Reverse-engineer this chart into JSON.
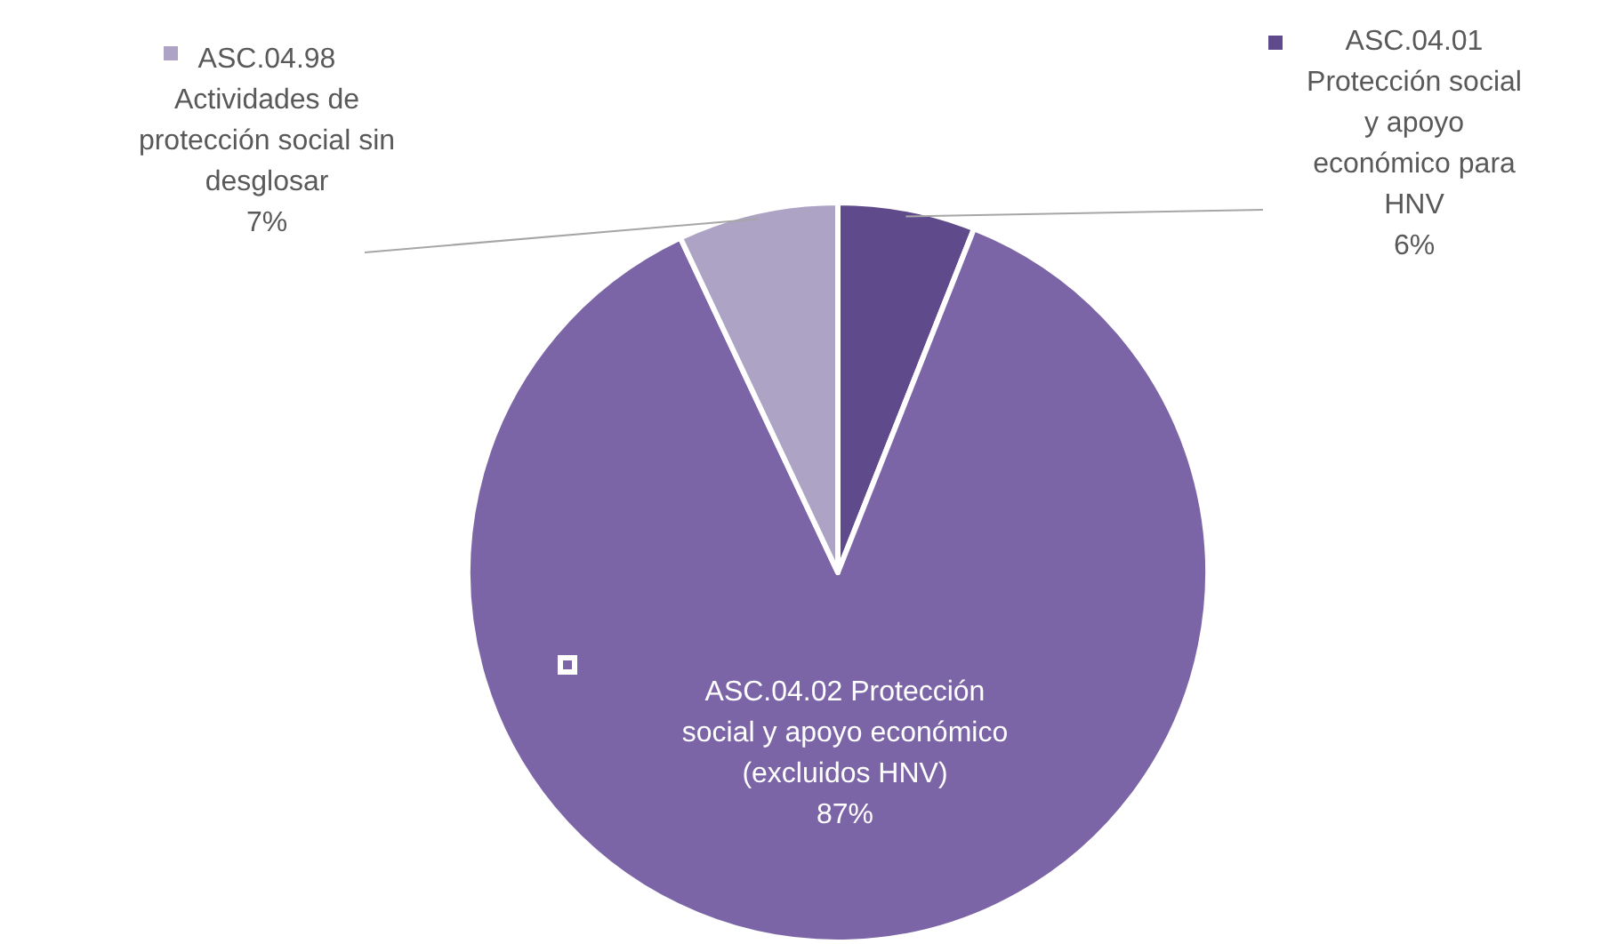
{
  "chart_data": {
    "type": "pie",
    "categories": [
      "ASC.04.01 Protección social y apoyo económico para HNV",
      "ASC.04.02 Protección social y apoyo económico (excluidos HNV)",
      "ASC.04.98 Actividades de protección social sin desglosar"
    ],
    "values": [
      6,
      87,
      7
    ],
    "colors": [
      "#5f4b8b",
      "#7b65a6",
      "#ada3c4"
    ],
    "value_labels": [
      "6%",
      "87%",
      "7%"
    ],
    "legend": "top"
  }
}
